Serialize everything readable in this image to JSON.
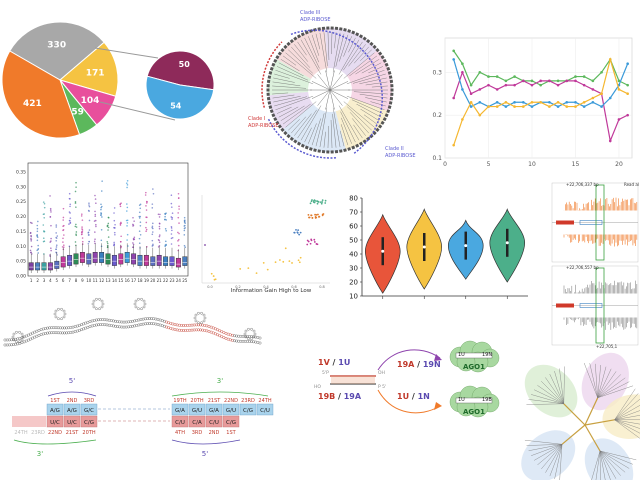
{
  "chart_data": [
    {
      "type": "pie",
      "panel": "pie-main",
      "slices": [
        {
          "label": "330",
          "value": 330,
          "color": "#a8a8a8"
        },
        {
          "label": "171",
          "value": 171,
          "color": "#f5c342"
        },
        {
          "label": "104",
          "value": 104,
          "color": "#e84f9c"
        },
        {
          "label": "59",
          "value": 59,
          "color": "#5cb85c"
        },
        {
          "label": "421",
          "value": 421,
          "color": "#f07a2a"
        }
      ],
      "callout": {
        "type": "pie",
        "slices": [
          {
            "label": "50",
            "value": 50,
            "color": "#8e2a5a"
          },
          {
            "label": "54",
            "value": 54,
            "color": "#4aa8e0"
          }
        ]
      }
    },
    {
      "type": "diagram",
      "panel": "circular-tree",
      "annotations": [
        "Clade III",
        "ADP-RIBOSE",
        "Clade I",
        "ADP-RIBOSE",
        "Clade II",
        "ADP-RIBOSE"
      ]
    },
    {
      "type": "line",
      "panel": "line-top-right",
      "x": [
        1,
        2,
        3,
        4,
        5,
        6,
        7,
        8,
        9,
        10,
        11,
        12,
        13,
        14,
        15,
        16,
        17,
        18,
        19,
        20,
        21
      ],
      "xticks": [
        "0",
        "5",
        "10",
        "15",
        "20"
      ],
      "yticks": [
        "0.1",
        "0.2",
        "0.3"
      ],
      "ylim": [
        0.1,
        0.38
      ],
      "xlim": [
        0,
        21.5
      ],
      "series": [
        {
          "color": "#5cb85c",
          "values": [
            0.35,
            0.32,
            0.27,
            0.3,
            0.29,
            0.29,
            0.28,
            0.29,
            0.28,
            0.28,
            0.27,
            0.28,
            0.28,
            0.28,
            0.29,
            0.29,
            0.28,
            0.3,
            0.33,
            0.28,
            0.27
          ]
        },
        {
          "color": "#c0399a",
          "values": [
            0.24,
            0.3,
            0.25,
            0.26,
            0.27,
            0.26,
            0.27,
            0.27,
            0.28,
            0.27,
            0.28,
            0.28,
            0.27,
            0.28,
            0.28,
            0.27,
            0.26,
            0.25,
            0.14,
            0.19,
            0.2
          ]
        },
        {
          "color": "#3a9ad9",
          "values": [
            0.33,
            0.26,
            0.22,
            0.23,
            0.22,
            0.23,
            0.22,
            0.23,
            0.23,
            0.22,
            0.23,
            0.23,
            0.22,
            0.23,
            0.23,
            0.22,
            0.23,
            0.22,
            0.24,
            0.27,
            0.32
          ]
        },
        {
          "color": "#f5b730",
          "values": [
            0.13,
            0.19,
            0.23,
            0.2,
            0.22,
            0.22,
            0.23,
            0.22,
            0.22,
            0.23,
            0.23,
            0.22,
            0.23,
            0.22,
            0.22,
            0.23,
            0.24,
            0.25,
            0.33,
            0.26,
            0.25
          ]
        }
      ]
    },
    {
      "type": "box",
      "panel": "boxplot",
      "categories": [
        "1",
        "2",
        "3",
        "4",
        "5",
        "6",
        "7",
        "8",
        "9",
        "10",
        "11",
        "12",
        "13",
        "14",
        "15",
        "16",
        "17",
        "18",
        "19",
        "20",
        "21",
        "22",
        "23",
        "24",
        "25"
      ],
      "yticks": [
        "0.00",
        "0.05",
        "0.10",
        "0.15",
        "0.20",
        "0.25",
        "0.30",
        "0.35"
      ],
      "ylim": [
        0,
        0.38
      ],
      "medians": [
        0.03,
        0.03,
        0.03,
        0.03,
        0.035,
        0.045,
        0.05,
        0.055,
        0.06,
        0.055,
        0.06,
        0.06,
        0.055,
        0.05,
        0.055,
        0.06,
        0.055,
        0.05,
        0.05,
        0.045,
        0.05,
        0.045,
        0.045,
        0.04,
        0.045
      ],
      "q1": [
        0.02,
        0.02,
        0.02,
        0.02,
        0.025,
        0.03,
        0.035,
        0.04,
        0.045,
        0.04,
        0.045,
        0.045,
        0.04,
        0.035,
        0.04,
        0.045,
        0.04,
        0.035,
        0.035,
        0.035,
        0.035,
        0.035,
        0.035,
        0.03,
        0.035
      ],
      "q3": [
        0.045,
        0.045,
        0.045,
        0.045,
        0.05,
        0.065,
        0.07,
        0.075,
        0.08,
        0.075,
        0.08,
        0.08,
        0.075,
        0.07,
        0.075,
        0.08,
        0.075,
        0.07,
        0.07,
        0.065,
        0.07,
        0.065,
        0.065,
        0.06,
        0.065
      ],
      "colors": [
        "#7b3fa0",
        "#4a7fc0",
        "#3aa0a0",
        "#8e44ad",
        "#5b6fc0",
        "#c0399a",
        "#6a5acd",
        "#2e8b57",
        "#c0399a",
        "#5b6fc0",
        "#8e44ad",
        "#3a7fc0",
        "#2e8b57",
        "#6a5acd",
        "#c0399a",
        "#3a9ad9",
        "#8e44ad",
        "#4a7fc0",
        "#c0399a",
        "#5b6fc0",
        "#8e44ad",
        "#3a7fc0",
        "#6a5acd",
        "#c0399a",
        "#4a7fc0"
      ]
    },
    {
      "type": "scatter",
      "panel": "scatter-info-gain",
      "xlabel": "Information Gain High to Low",
      "xticks": [
        "0.0",
        "0.2",
        "0.4",
        "0.6",
        "0.8"
      ]
    },
    {
      "type": "violin",
      "panel": "violin",
      "yticks": [
        "10",
        "20",
        "30",
        "40",
        "50",
        "60",
        "70",
        "80"
      ],
      "ylim": [
        10,
        80
      ],
      "series": [
        {
          "color": "#e8553a",
          "median": 42,
          "range": [
            12,
            68
          ]
        },
        {
          "color": "#f5c342",
          "median": 45,
          "range": [
            15,
            72
          ]
        },
        {
          "color": "#4aa8e0",
          "median": 46,
          "range": [
            22,
            64
          ]
        },
        {
          "color": "#4caf8a",
          "median": 48,
          "range": [
            20,
            72
          ]
        }
      ]
    },
    {
      "type": "diagram",
      "panel": "genome-tracks",
      "labels": [
        "+22,706,337 bp",
        "Read al",
        "+22,706,557 bp",
        "+22,705,1"
      ]
    },
    {
      "type": "diagram",
      "panel": "rna-structure"
    },
    {
      "type": "diagram",
      "panel": "base-pairing",
      "labels": {
        "prime5_top": "5'",
        "prime3_bottom_left": "3'",
        "prime3_top_right": "3'",
        "prime5_bottom_right": "5'",
        "left_top_positions": [
          "1ST",
          "2ND",
          "3RD"
        ],
        "left_top_boxes": [
          "A/G",
          "A/G",
          "G/C"
        ],
        "left_bottom_boxes": [
          "U/C",
          "U/C",
          "C/G"
        ],
        "left_bottom_positions": [
          "24TH",
          "23RD",
          "22ND",
          "21ST",
          "20TH"
        ],
        "right_top_positions": [
          "19TH",
          "20TH",
          "21ST",
          "22ND",
          "23RD",
          "24TH"
        ],
        "right_top_boxes": [
          "G/A",
          "G/U",
          "G/A",
          "G/U",
          "C/G",
          "C/U"
        ],
        "right_bottom_boxes": [
          "C/U",
          "C/A",
          "C/U",
          "C/G"
        ],
        "right_bottom_positions": [
          "4TH",
          "3RD",
          "2ND",
          "1ST"
        ]
      }
    },
    {
      "type": "diagram",
      "panel": "ago1-sorting",
      "labels": {
        "top_left_a": "1V",
        "top_left_b": "1U",
        "bottom_left_a": "19B",
        "bottom_left_b": "19A",
        "top_right_a": "19A",
        "top_right_b": "19N",
        "bottom_right_a": "1U",
        "bottom_right_b": "1N",
        "strand_5": "5'P",
        "strand_3": "3'",
        "strand_ho": "HO",
        "strand_oh": "OH",
        "strand_p": "P 5'",
        "cloud_top_1u": "1U",
        "cloud_top_19n": "19N",
        "cloud_top_name": "AGO1",
        "cloud_bottom_1u": "1U",
        "cloud_bottom_19b": "19B",
        "cloud_bottom_name": "AGO1"
      }
    },
    {
      "type": "diagram",
      "panel": "radial-tree"
    }
  ]
}
